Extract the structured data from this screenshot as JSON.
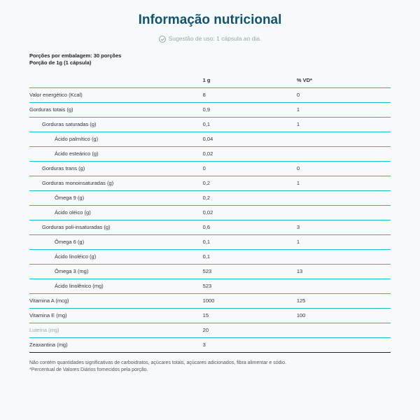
{
  "title": "Informação nutricional",
  "subtitle": "Sugestão de uso: 1 cápsula ao dia.",
  "servings_line1": "Porções por embalagem: 30 porções",
  "servings_line2": "Porção de 1g (1 cápsula)",
  "col1": "1 g",
  "col2": "% VD*",
  "rows": [
    {
      "name": "Valor energético (Kcal)",
      "v1": "8",
      "v2": "0",
      "indent": 0
    },
    {
      "name": "Gorduras totais (g)",
      "v1": "0,9",
      "v2": "1",
      "indent": 0
    },
    {
      "name": "Gorduras saturadas (g)",
      "v1": "0,1",
      "v2": "1",
      "indent": 1
    },
    {
      "name": "Ácido palmítico (g)",
      "v1": "0,04",
      "v2": "",
      "indent": 2
    },
    {
      "name": "Ácido esteárico (g)",
      "v1": "0,02",
      "v2": "",
      "indent": 2
    },
    {
      "name": "Gorduras trans (g)",
      "v1": "0",
      "v2": "0",
      "indent": 1
    },
    {
      "name": "Gorduras monoinsaturadas (g)",
      "v1": "0,2",
      "v2": "1",
      "indent": 1
    },
    {
      "name": "Ômega 9 (g)",
      "v1": "0,2",
      "v2": "",
      "indent": 2
    },
    {
      "name": "Ácido oléico (g)",
      "v1": "0,02",
      "v2": "",
      "indent": 2
    },
    {
      "name": "Gorduras poli-insaturadas (g)",
      "v1": "0,6",
      "v2": "3",
      "indent": 1
    },
    {
      "name": "Ômega 6 (g)",
      "v1": "0,1",
      "v2": "1",
      "indent": 2
    },
    {
      "name": "Ácido linoléico (g)",
      "v1": "0,1",
      "v2": "",
      "indent": 2
    },
    {
      "name": "Ômega 3 (mg)",
      "v1": "523",
      "v2": "13",
      "indent": 2
    },
    {
      "name": "Ácido linolênico (mg)",
      "v1": "523",
      "v2": "",
      "indent": 2
    },
    {
      "name": "Vitamina A (mcg)",
      "v1": "1000",
      "v2": "125",
      "indent": 0
    },
    {
      "name": "Vitamina E (mg)",
      "v1": "15",
      "v2": "100",
      "indent": 0
    },
    {
      "name": "Luteína (mg)",
      "v1": "20",
      "v2": "",
      "indent": 0,
      "muted": true
    },
    {
      "name": "Zeaxantina (mg)",
      "v1": "3",
      "v2": "",
      "indent": 0
    }
  ],
  "footnote1": "Não contém quantidades significativas de carboidratos, açúcares totais, açúcares adicionados, fibra alimentar e sódio.",
  "footnote2": "*Percentual de Valores Diários fornecidos pela porção.",
  "styling": {
    "background": "#f6fafb",
    "title_color": "#17526b",
    "row_border": "#1fb9c6",
    "muted_color": "#9aa6a9",
    "title_fontsize": 19,
    "body_fontsize": 7.5
  }
}
